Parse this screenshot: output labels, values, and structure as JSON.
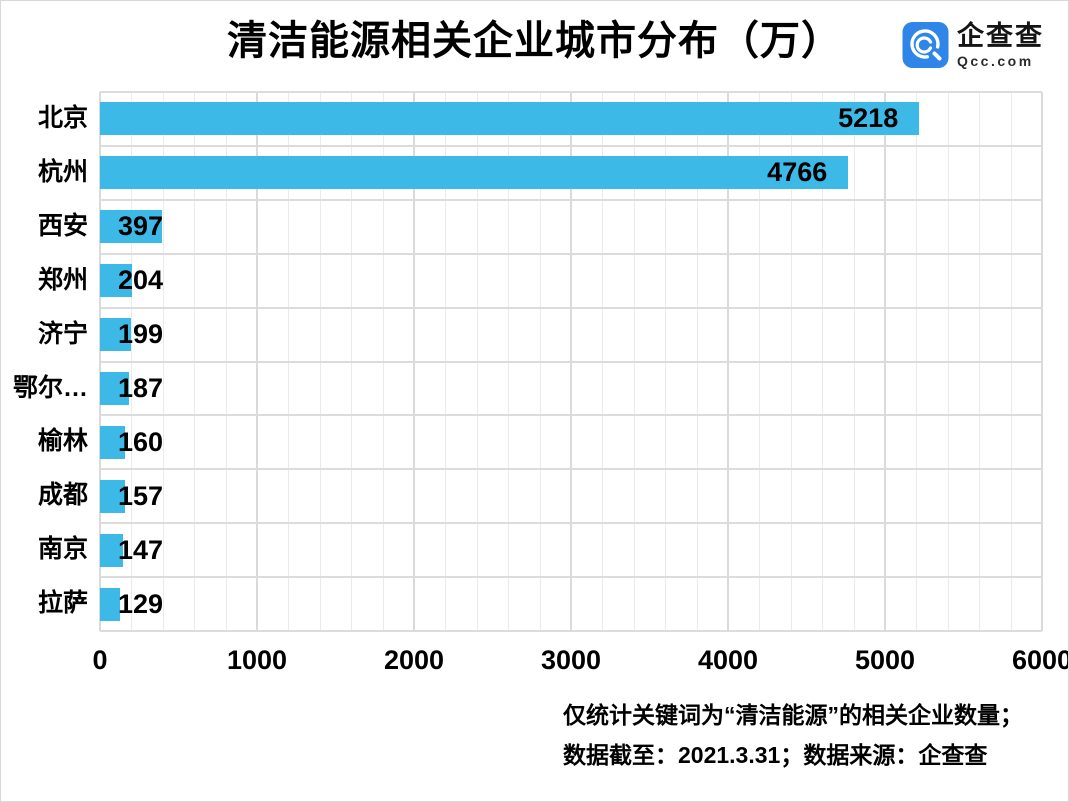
{
  "header": {
    "title": "清洁能源相关企业城市分布（万）",
    "logo": {
      "brand": "企查查",
      "domain": "Qcc.com",
      "icon": "qcc-magnifier-icon",
      "color": "#2f86e8"
    }
  },
  "chart_data": {
    "type": "bar",
    "orientation": "horizontal",
    "title": "清洁能源相关企业城市分布（万）",
    "categories": [
      "北京",
      "杭州",
      "西安",
      "郑州",
      "济宁",
      "鄂尔…",
      "榆林",
      "成都",
      "南京",
      "拉萨"
    ],
    "values": [
      5218,
      4766,
      397,
      204,
      199,
      187,
      160,
      157,
      147,
      129
    ],
    "xlabel": "",
    "ylabel": "",
    "xlim": [
      0,
      6000
    ],
    "x_ticks": [
      "0",
      "1000",
      "2000",
      "3000",
      "4000",
      "5000",
      "6000"
    ],
    "x_tick_values": [
      0,
      1000,
      2000,
      3000,
      4000,
      5000,
      6000
    ],
    "minor_tick_step": 200,
    "grid": true,
    "legend": false,
    "bar_color": "#3cb9e6",
    "value_label_color": "#000000"
  },
  "footer": {
    "line1": "仅统计关键词为“清洁能源”的相关企业数量；",
    "line2": "数据截至：2021.3.31；数据来源：企查查"
  }
}
